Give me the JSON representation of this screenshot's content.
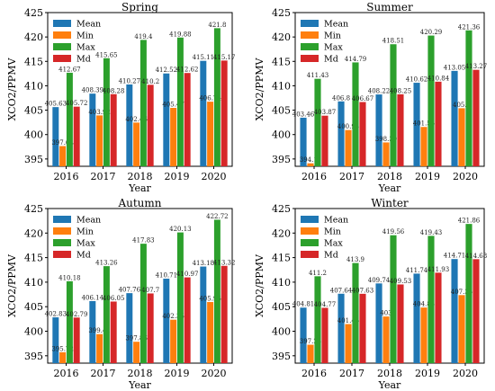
{
  "chart_data": [
    {
      "type": "bar",
      "title": "Spring",
      "xlabel": "Year",
      "ylabel": "XCO2/PPMV",
      "ylim": [
        393.5,
        425
      ],
      "yticks": [
        395,
        400,
        405,
        410,
        415,
        420,
        425
      ],
      "legend_position": "top-left",
      "categories": [
        "2016",
        "2017",
        "2018",
        "2019",
        "2020"
      ],
      "series": [
        {
          "name": "Mean",
          "color": "#1f77b4",
          "values": [
            405.63,
            408.39,
            410.27,
            412.52,
            415.11
          ],
          "labels": [
            "405.63",
            "408.39",
            "410.27",
            "412.52",
            "415.11"
          ]
        },
        {
          "name": "Min",
          "color": "#ff7f0e",
          "values": [
            397.64,
            403.92,
            402.46,
            405.47,
            406.74
          ],
          "labels": [
            "397.64",
            "403.92",
            "402.46",
            "405.47",
            "406.74"
          ]
        },
        {
          "name": "Max",
          "color": "#2ca02c",
          "values": [
            412.67,
            415.65,
            419.4,
            419.88,
            421.8
          ],
          "labels": [
            "412.67",
            "415.65",
            "419.4",
            "419.88",
            "421.8"
          ]
        },
        {
          "name": "Md",
          "color": "#d62728",
          "values": [
            405.72,
            408.28,
            410.2,
            412.62,
            415.17
          ],
          "labels": [
            "405.72",
            "408.28",
            "410.2",
            "412.62",
            "415.17"
          ]
        }
      ]
    },
    {
      "type": "bar",
      "title": "Summer",
      "xlabel": "Year",
      "ylabel": "XCO2/PPMV",
      "ylim": [
        393.5,
        425
      ],
      "yticks": [
        395,
        400,
        405,
        410,
        415,
        420,
        425
      ],
      "legend_position": "top-left",
      "categories": [
        "2016",
        "2017",
        "2018",
        "2019",
        "2020"
      ],
      "series": [
        {
          "name": "Mean",
          "color": "#1f77b4",
          "values": [
            403.46,
            406.8,
            408.22,
            410.62,
            413.05
          ],
          "labels": [
            "403.46",
            "406.8",
            "408.22",
            "410.62",
            "413.05"
          ]
        },
        {
          "name": "Min",
          "color": "#ff7f0e",
          "values": [
            394.11,
            400.93,
            398.39,
            401.56,
            405.4
          ],
          "labels": [
            "394.11",
            "400.93",
            "398.39",
            "401.56",
            "405.4"
          ]
        },
        {
          "name": "Max",
          "color": "#2ca02c",
          "values": [
            411.43,
            414.79,
            418.51,
            420.29,
            421.36
          ],
          "labels": [
            "411.43",
            "414.79",
            "418.51",
            "420.29",
            "421.36"
          ]
        },
        {
          "name": "Md",
          "color": "#d62728",
          "values": [
            403.87,
            406.67,
            408.25,
            410.84,
            413.27
          ],
          "labels": [
            "403.87",
            "406.67",
            "408.25",
            "410.84",
            "413.27"
          ]
        }
      ]
    },
    {
      "type": "bar",
      "title": "Autumn",
      "xlabel": "Year",
      "ylabel": "XCO2/PPMV",
      "ylim": [
        393.5,
        425
      ],
      "yticks": [
        395,
        400,
        405,
        410,
        415,
        420,
        425
      ],
      "legend_position": "top-left",
      "categories": [
        "2016",
        "2017",
        "2018",
        "2019",
        "2020"
      ],
      "series": [
        {
          "name": "Mean",
          "color": "#1f77b4",
          "values": [
            402.83,
            406.14,
            407.76,
            410.71,
            413.18
          ],
          "labels": [
            "402.83",
            "406.14",
            "407.76",
            "410.71",
            "413.18"
          ]
        },
        {
          "name": "Min",
          "color": "#ff7f0e",
          "values": [
            395.72,
            399.41,
            397.86,
            402.35,
            405.95
          ],
          "labels": [
            "395.72",
            "399.41",
            "397.86",
            "402.35",
            "405.95"
          ]
        },
        {
          "name": "Max",
          "color": "#2ca02c",
          "values": [
            410.18,
            413.26,
            417.83,
            420.13,
            422.72
          ],
          "labels": [
            "410.18",
            "413.26",
            "417.83",
            "420.13",
            "422.72"
          ]
        },
        {
          "name": "Md",
          "color": "#d62728",
          "values": [
            402.79,
            406.05,
            407.7,
            410.97,
            413.32
          ],
          "labels": [
            "402.79",
            "406.05",
            "407.7",
            "410.97",
            "413.32"
          ]
        }
      ]
    },
    {
      "type": "bar",
      "title": "Winter",
      "xlabel": "Year",
      "ylabel": "XCO2/PPMV",
      "ylim": [
        393.5,
        425
      ],
      "yticks": [
        395,
        400,
        405,
        410,
        415,
        420,
        425
      ],
      "legend_position": "top-left",
      "categories": [
        "2016",
        "2017",
        "2018",
        "2019",
        "2020"
      ],
      "series": [
        {
          "name": "Mean",
          "color": "#1f77b4",
          "values": [
            404.81,
            407.64,
            409.74,
            411.74,
            414.71
          ],
          "labels": [
            "404.81",
            "407.64",
            "409.74",
            "411.74",
            "414.71"
          ]
        },
        {
          "name": "Min",
          "color": "#ff7f0e",
          "values": [
            397.25,
            401.46,
            403.0,
            404.83,
            407.36
          ],
          "labels": [
            "397.25",
            "401.46",
            "403",
            "404.83",
            "407.36"
          ]
        },
        {
          "name": "Max",
          "color": "#2ca02c",
          "values": [
            411.2,
            413.9,
            419.56,
            419.43,
            421.86
          ],
          "labels": [
            "411.2",
            "413.9",
            "419.56",
            "419.43",
            "421.86"
          ]
        },
        {
          "name": "Md",
          "color": "#d62728",
          "values": [
            404.77,
            407.63,
            409.53,
            411.93,
            414.68
          ],
          "labels": [
            "404.77",
            "407.63",
            "409.53",
            "411.93",
            "414.68"
          ]
        }
      ]
    }
  ]
}
